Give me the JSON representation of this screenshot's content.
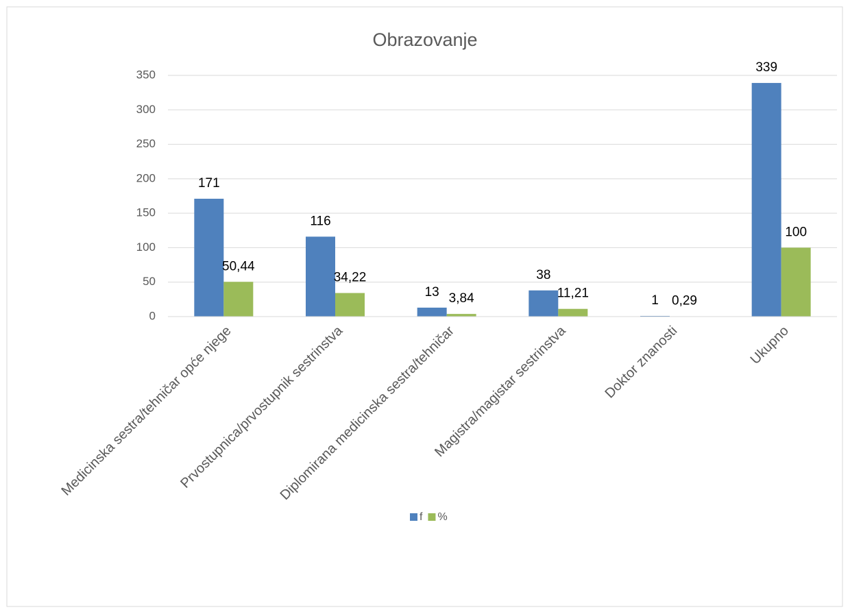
{
  "chart_data": {
    "type": "bar",
    "title": "Obrazovanje",
    "categories": [
      "Medicinska sestra/tehničar opće njege",
      "Prvostupnica/prvostupnik sestrinstva",
      "Diplomirana medicinska sestra/tehničar",
      "Magistra/magistar sestrinstva",
      "Doktor znanosti",
      "Ukupno"
    ],
    "series": [
      {
        "name": "f",
        "color": "#4f81bd",
        "values": [
          171,
          116,
          13,
          38,
          1,
          339
        ]
      },
      {
        "name": "%",
        "color": "#9bbb59",
        "values": [
          50.44,
          34.22,
          3.84,
          11.21,
          0.29,
          100
        ],
        "value_labels": [
          "50,44",
          "34,22",
          "3,84",
          "11,21",
          "0,29",
          "100"
        ]
      }
    ],
    "ylim": [
      0,
      350
    ],
    "yticks": [
      0,
      50,
      100,
      150,
      200,
      250,
      300,
      350
    ],
    "grid": true,
    "legend": "bottom"
  }
}
